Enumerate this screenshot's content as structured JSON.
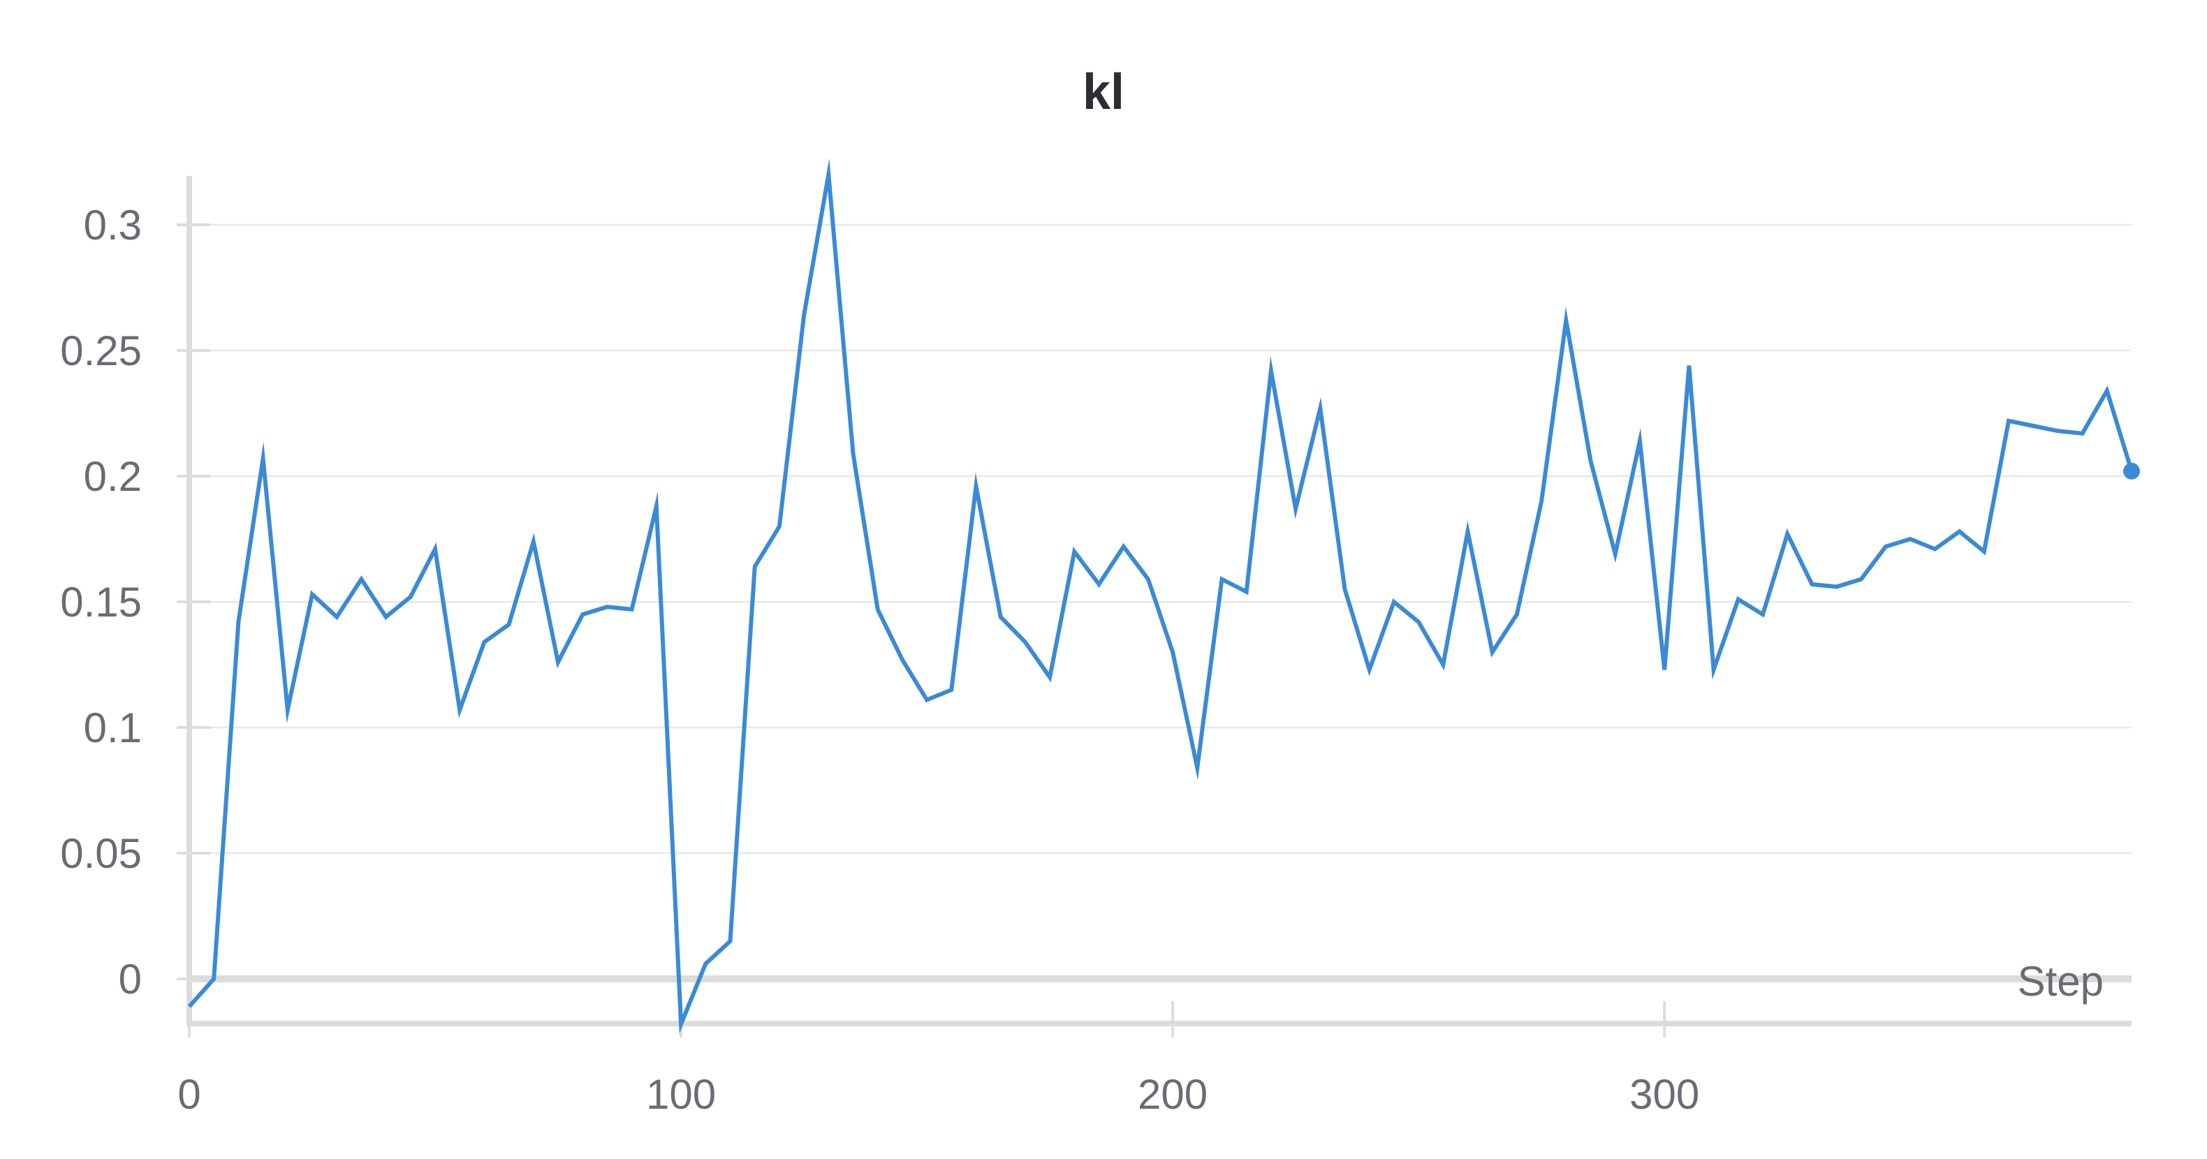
{
  "chart_data": {
    "type": "line",
    "title": "kl",
    "xlabel": "Step",
    "ylabel": "",
    "xlim": [
      0,
      395
    ],
    "ylim": [
      -0.018,
      0.32
    ],
    "xticks": [
      0,
      100,
      200,
      300
    ],
    "xtick_labels": [
      "0",
      "100",
      "200",
      "300"
    ],
    "yticks": [
      0,
      0.05,
      0.1,
      0.15,
      0.2,
      0.25,
      0.3
    ],
    "ytick_labels": [
      "0",
      "0.05",
      "0.1",
      "0.15",
      "0.2",
      "0.25",
      "0.3"
    ],
    "grid": true,
    "series": [
      {
        "color": "#3a8ad6",
        "end_marker": true,
        "x": [
          0,
          5,
          10,
          15,
          20,
          25,
          30,
          35,
          40,
          45,
          50,
          55,
          60,
          65,
          70,
          75,
          80,
          85,
          90,
          95,
          100,
          105,
          110,
          115,
          120,
          125,
          130,
          135,
          140,
          145,
          150,
          155,
          160,
          165,
          170,
          175,
          180,
          185,
          190,
          195,
          200,
          205,
          210,
          215,
          220,
          225,
          230,
          235,
          240,
          245,
          250,
          255,
          260,
          265,
          270,
          275,
          280,
          285,
          290,
          295,
          300,
          305,
          310,
          315,
          320,
          325,
          330,
          335,
          340,
          345,
          350,
          355,
          360,
          365,
          370,
          375,
          380,
          385,
          390,
          395
        ],
        "y": [
          -0.011,
          0.0,
          0.142,
          0.207,
          0.107,
          0.153,
          0.144,
          0.159,
          0.144,
          0.152,
          0.171,
          0.107,
          0.134,
          0.141,
          0.174,
          0.126,
          0.145,
          0.148,
          0.147,
          0.188,
          -0.018,
          0.006,
          0.015,
          0.164,
          0.18,
          0.264,
          0.32,
          0.209,
          0.147,
          0.127,
          0.111,
          0.115,
          0.196,
          0.144,
          0.134,
          0.12,
          0.17,
          0.157,
          0.172,
          0.159,
          0.13,
          0.084,
          0.159,
          0.154,
          0.242,
          0.187,
          0.227,
          0.155,
          0.123,
          0.15,
          0.142,
          0.125,
          0.178,
          0.13,
          0.145,
          0.19,
          0.262,
          0.206,
          0.169,
          0.214,
          0.123,
          0.244,
          0.123,
          0.151,
          0.145,
          0.177,
          0.157,
          0.156,
          0.159,
          0.172,
          0.175,
          0.171,
          0.178,
          0.17,
          0.222,
          0.22,
          0.218,
          0.217,
          0.234,
          0.202
        ]
      }
    ]
  }
}
